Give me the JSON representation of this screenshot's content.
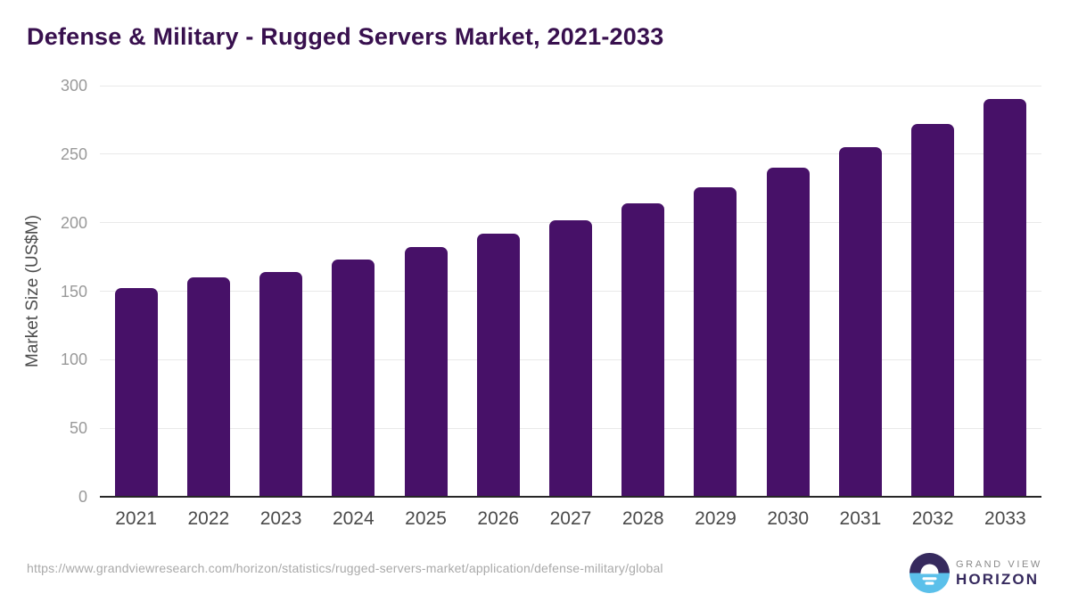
{
  "title": "Defense & Military - Rugged Servers Market, 2021-2033",
  "chart_data": {
    "type": "bar",
    "categories": [
      "2021",
      "2022",
      "2023",
      "2024",
      "2025",
      "2026",
      "2027",
      "2028",
      "2029",
      "2030",
      "2031",
      "2032",
      "2033"
    ],
    "values": [
      152,
      160,
      164,
      173,
      182,
      192,
      202,
      214,
      226,
      240,
      255,
      272,
      290
    ],
    "title": "Defense & Military - Rugged Servers Market, 2021-2033",
    "xlabel": "",
    "ylabel": "Market Size (US$M)",
    "ylim": [
      0,
      300
    ],
    "yticks": [
      0,
      50,
      100,
      150,
      200,
      250,
      300
    ],
    "grid": true,
    "legend": "none",
    "bar_color": "#471168"
  },
  "footer": {
    "source_url": "https://www.grandviewresearch.com/horizon/statistics/rugged-servers-market/application/defense-military/global",
    "logo": {
      "line1": "GRAND VIEW",
      "line2": "HORIZON"
    }
  },
  "colors": {
    "title_text": "#38104e",
    "bar": "#471168",
    "gridline": "#e9e9e9",
    "axis_line": "#262626",
    "y_tick_text": "#999999",
    "x_tick_text": "#4a4a4a",
    "logo_purple": "#362a5e",
    "logo_blue": "#5bc0ea",
    "logo_gray_text": "#8a8a8a"
  }
}
